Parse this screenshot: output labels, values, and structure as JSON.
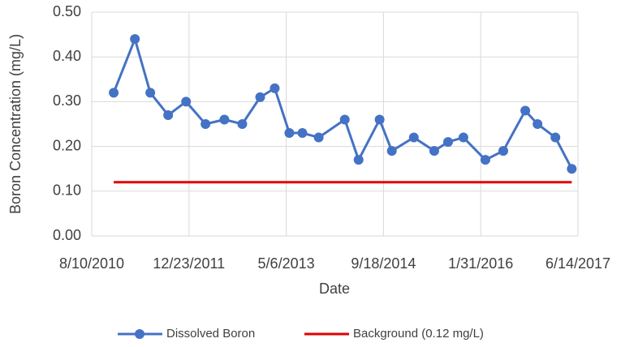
{
  "chart_data": {
    "type": "line",
    "x_label": "Date",
    "y_label": "Boron Concentration  (mg/L)",
    "xlim": [
      "8/10/2010",
      "6/14/2017"
    ],
    "xticks": [
      "8/10/2010",
      "12/23/2011",
      "5/6/2013",
      "9/18/2014",
      "1/31/2016",
      "6/14/2017"
    ],
    "ylim": [
      0,
      0.5
    ],
    "yticks": [
      {
        "value": 0,
        "label": "0.00"
      },
      {
        "value": 0.1,
        "label": "0.10"
      },
      {
        "value": 0.2,
        "label": "0.20"
      },
      {
        "value": 0.3,
        "label": "0.30"
      },
      {
        "value": 0.4,
        "label": "0.40"
      },
      {
        "value": 0.5,
        "label": "0.50"
      }
    ],
    "grid": true,
    "legend": "bottom",
    "series": [
      {
        "name": "Dissolved Boron",
        "color": "#4472c4",
        "marker": true,
        "x": [
          "12/1/2010",
          "3/20/2011",
          "6/7/2011",
          "9/7/2011",
          "12/8/2011",
          "3/17/2012",
          "6/22/2012",
          "9/22/2012",
          "12/23/2012",
          "3/8/2013",
          "5/22/2013",
          "7/28/2013",
          "10/20/2013",
          "3/3/2014",
          "5/13/2014",
          "8/29/2014",
          "10/31/2014",
          "2/21/2015",
          "6/6/2015",
          "8/16/2015",
          "11/3/2015",
          "2/24/2016",
          "5/26/2016",
          "9/16/2016",
          "11/18/2016",
          "2/18/2017",
          "5/13/2017"
        ],
        "values": [
          0.32,
          0.44,
          0.32,
          0.27,
          0.3,
          0.25,
          0.26,
          0.25,
          0.31,
          0.33,
          0.23,
          0.23,
          0.22,
          0.26,
          0.17,
          0.26,
          0.19,
          0.22,
          0.19,
          0.21,
          0.22,
          0.17,
          0.19,
          0.28,
          0.25,
          0.22,
          0.15
        ]
      },
      {
        "name": "Background (0.12 mg/L)",
        "color": "#e00000",
        "marker": false,
        "x": [
          "12/1/2010",
          "5/13/2017"
        ],
        "values": [
          0.12,
          0.12
        ]
      }
    ]
  }
}
